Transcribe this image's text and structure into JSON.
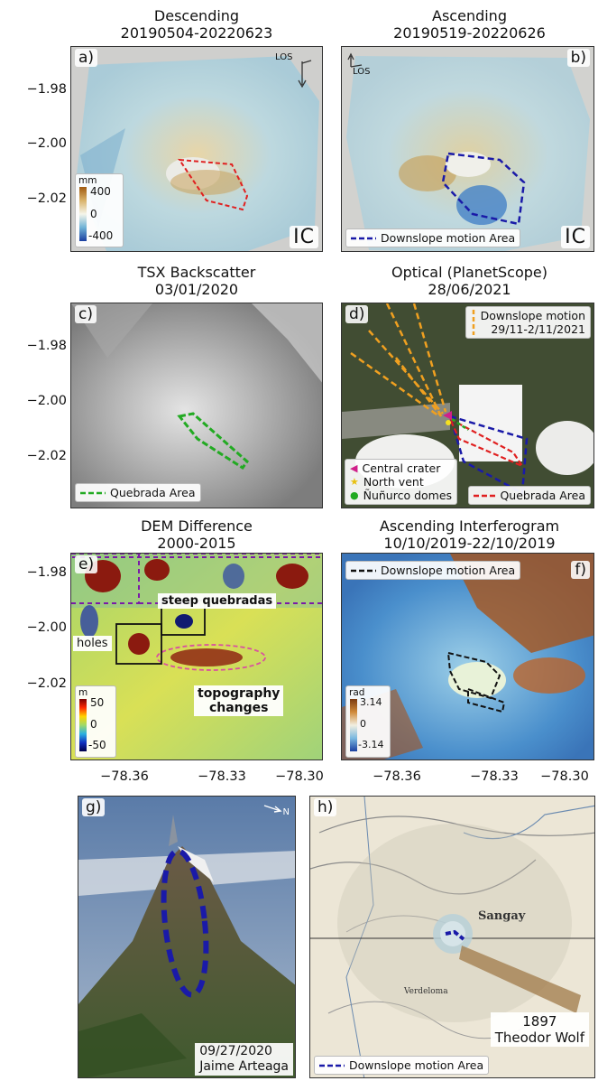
{
  "panels": {
    "a": {
      "label": "a)",
      "title_line1": "Descending",
      "title_line2": "20190504-20220623",
      "los": "LOS",
      "ic": "IC",
      "colorbar": {
        "unit": "mm",
        "max": "400",
        "mid": "0",
        "min": "-400"
      }
    },
    "b": {
      "label": "b)",
      "title_line1": "Ascending",
      "title_line2": "20190519-20220626",
      "los": "LOS",
      "ic": "IC",
      "legend": "Downslope motion Area"
    },
    "c": {
      "label": "c)",
      "title_line1": "TSX Backscatter",
      "title_line2": "03/01/2020",
      "legend": "Quebrada Area"
    },
    "d": {
      "label": "d)",
      "title_line1": "Optical (PlanetScope)",
      "title_line2": "28/06/2021",
      "legend_top_line1": "Downslope motion",
      "legend_top_line2": "29/11-2/11/2021",
      "legend_items": [
        "Central crater",
        "North vent",
        "Ñuñurco domes"
      ],
      "legend_right": "Quebrada Area"
    },
    "e": {
      "label": "e)",
      "title_line1": "DEM Difference",
      "title_line2": "2000-2015",
      "annot_steep": "steep quebradas",
      "annot_holes": "holes",
      "annot_topo_line1": "topography",
      "annot_topo_line2": "changes",
      "colorbar": {
        "unit": "m",
        "max": "50",
        "mid": "0",
        "min": "-50"
      }
    },
    "f": {
      "label": "f)",
      "title_line1": "Ascending Interferogram",
      "title_line2": "10/10/2019-22/10/2019",
      "legend": "Downslope motion Area",
      "colorbar": {
        "unit": "rad",
        "max": "3.14",
        "mid": "0",
        "min": "-3.14"
      }
    },
    "g": {
      "label": "g)",
      "north": "N",
      "caption_line1": "09/27/2020",
      "caption_line2": "Jaime Arteaga"
    },
    "h": {
      "label": "h)",
      "caption_line1": "1897",
      "caption_line2": "Theodor Wolf",
      "legend": "Downslope motion Area",
      "map_labels": {
        "sangay": "Sangay",
        "verdeloma": "Verdeloma"
      }
    }
  },
  "axes": {
    "y_ticks": [
      "−1.98",
      "−2.00",
      "−2.02"
    ],
    "x_ticks": [
      "−78.36",
      "−78.33",
      "−78.30"
    ]
  },
  "colors": {
    "downslope": "#1a1aa8",
    "quebrada_red": "#e02020",
    "quebrada_green": "#22aa22",
    "orange": "#f0a020",
    "dem_black": "#111111"
  }
}
